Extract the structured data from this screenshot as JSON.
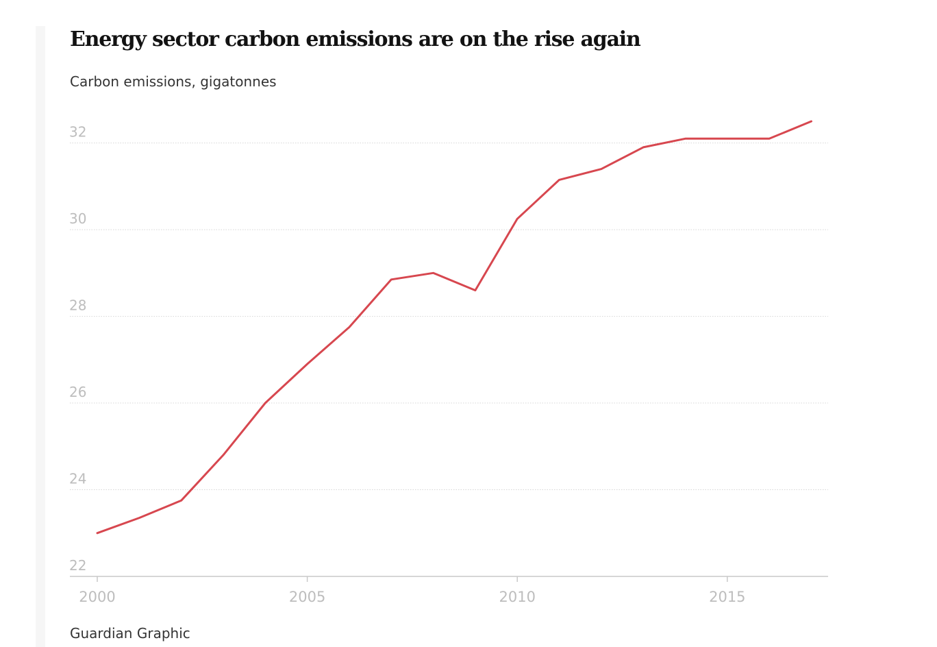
{
  "header": {
    "title": "Energy sector carbon emissions are on the rise again",
    "subtitle": "Carbon emissions, gigatonnes"
  },
  "footer": {
    "source": "Guardian Graphic"
  },
  "colors": {
    "line": "#d7474f",
    "grid": "#d6d6d6",
    "axis": "#c9c9c9",
    "tick_label": "#bdbdbd",
    "side_bar": "#f6f6f6"
  },
  "chart_data": {
    "type": "line",
    "title": "Energy sector carbon emissions are on the rise again",
    "subtitle": "Carbon emissions, gigatonnes",
    "xlabel": "",
    "ylabel": "",
    "x": [
      2000,
      2001,
      2002,
      2003,
      2004,
      2005,
      2006,
      2007,
      2008,
      2009,
      2010,
      2011,
      2012,
      2013,
      2014,
      2015,
      2016,
      2017
    ],
    "series": [
      {
        "values": [
          23.0,
          23.35,
          23.75,
          24.8,
          26.0,
          26.9,
          27.75,
          28.85,
          29.0,
          28.6,
          30.25,
          31.15,
          31.4,
          31.9,
          32.1,
          32.1,
          32.1,
          32.5
        ]
      }
    ],
    "xlim": [
      2000,
      2017.4
    ],
    "ylim": [
      22,
      32.5
    ],
    "x_ticks": [
      "2000",
      "2005",
      "2010",
      "2015"
    ],
    "y_ticks": [
      "22",
      "24",
      "26",
      "28",
      "30",
      "32"
    ],
    "grid": true,
    "legend": "none"
  }
}
